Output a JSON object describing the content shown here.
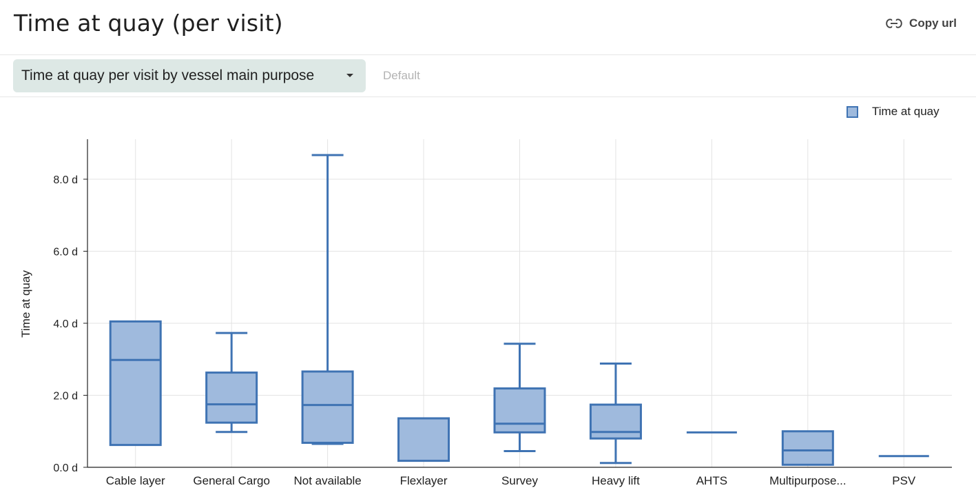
{
  "header": {
    "title": "Time at quay (per visit)",
    "copy_url_label": "Copy url"
  },
  "toolbar": {
    "selected_view": "Time at quay per visit by vessel main purpose",
    "default_label": "Default"
  },
  "colors": {
    "box_fill": "#9fbadd",
    "box_stroke": "#3f73b3",
    "select_bg": "#dde8e5"
  },
  "icons": {
    "copy": "link-icon",
    "dropdown": "caret-down-icon"
  },
  "chart_data": {
    "type": "box",
    "title": "",
    "xlabel": "",
    "ylabel": "Time at quay",
    "ylim": [
      0,
      9.1
    ],
    "yticks": [
      0,
      2,
      4,
      6,
      8
    ],
    "ytick_labels": [
      "0.0 d",
      "2.0 d",
      "4.0 d",
      "6.0 d",
      "8.0 d"
    ],
    "y_unit": "d",
    "grid": true,
    "legend": {
      "position": "top-right",
      "entries": [
        "Time at quay"
      ]
    },
    "categories": [
      "Cable layer",
      "General Cargo",
      "Not available",
      "Flexlayer",
      "Survey",
      "Heavy lift",
      "AHTS",
      "Multipurpose...",
      "PSV"
    ],
    "series": [
      {
        "name": "Time at quay",
        "boxes": [
          {
            "min": 0.62,
            "q1": 0.62,
            "median": 2.98,
            "q3": 4.05,
            "max": 4.05
          },
          {
            "min": 0.98,
            "q1": 1.24,
            "median": 1.75,
            "q3": 2.63,
            "max": 3.73
          },
          {
            "min": 0.65,
            "q1": 0.68,
            "median": 1.73,
            "q3": 2.66,
            "max": 8.67
          },
          {
            "min": 0.18,
            "q1": 0.18,
            "median": 1.36,
            "q3": 1.36,
            "max": 1.36
          },
          {
            "min": 0.45,
            "q1": 0.97,
            "median": 1.21,
            "q3": 2.19,
            "max": 3.43
          },
          {
            "min": 0.12,
            "q1": 0.8,
            "median": 0.98,
            "q3": 1.74,
            "max": 2.88
          },
          {
            "min": 0.97,
            "q1": 0.97,
            "median": 0.97,
            "q3": 0.97,
            "max": 0.97
          },
          {
            "min": 0.07,
            "q1": 0.07,
            "median": 0.47,
            "q3": 1.0,
            "max": 1.0
          },
          {
            "min": 0.31,
            "q1": 0.31,
            "median": 0.31,
            "q3": 0.31,
            "max": 0.31
          }
        ]
      }
    ]
  }
}
